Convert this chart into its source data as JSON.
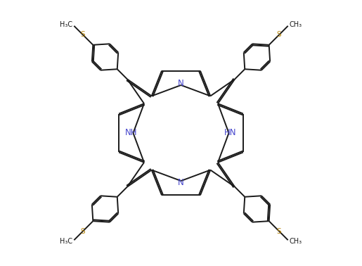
{
  "bg_color": "#ffffff",
  "bond_color": "#1a1a1a",
  "n_color": "#4444cc",
  "s_color": "#b8860b",
  "lw": 1.4,
  "dbo": 0.008,
  "figsize": [
    5.15,
    3.78
  ],
  "dpi": 100,
  "xlim": [
    -1.0,
    1.0
  ],
  "ylim": [
    -0.78,
    0.78
  ]
}
